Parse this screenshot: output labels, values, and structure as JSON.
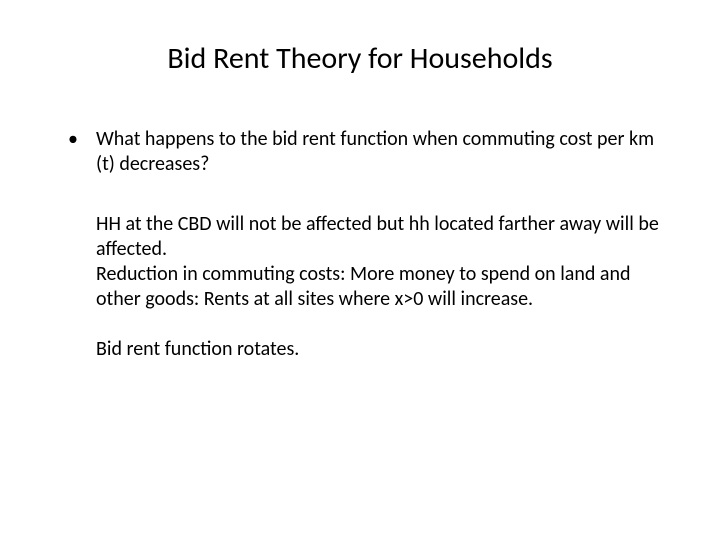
{
  "slide": {
    "title": "Bid Rent Theory for Households",
    "bullet": "What happens to the bid rent function when commuting cost per km (t) decreases?",
    "para1": "HH at the CBD will not be affected but hh located farther away will be affected.",
    "para2": "Reduction in commuting costs: More money to spend on land and other goods: Rents at all sites where x>0 will increase.",
    "para3": "Bid rent function rotates."
  },
  "style": {
    "background_color": "#ffffff",
    "text_color": "#000000",
    "title_fontsize": 30,
    "body_fontsize": 20,
    "font_family": "Calibri"
  }
}
